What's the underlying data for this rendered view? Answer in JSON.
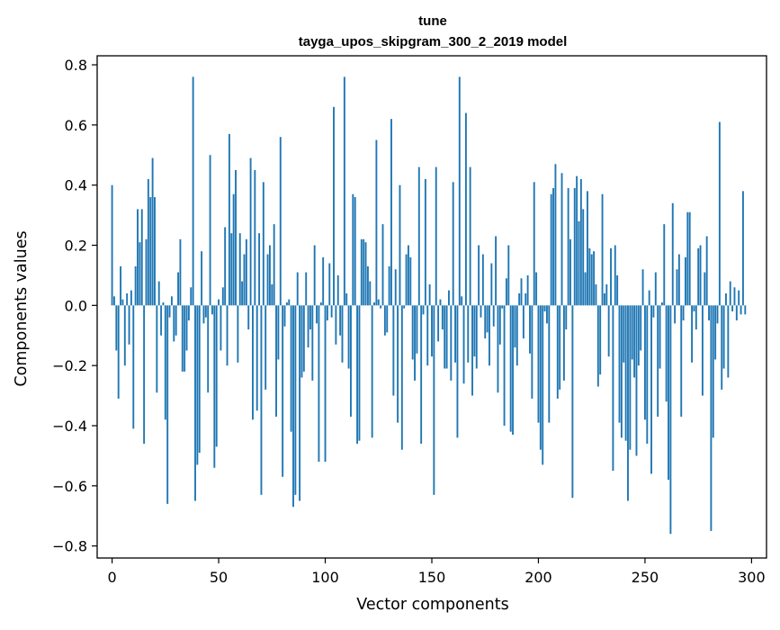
{
  "colors": {
    "bar": "#1f77b4",
    "axis": "#000000",
    "background": "#ffffff"
  },
  "chart_data": {
    "type": "bar",
    "title": "tune",
    "subtitle": "tayga_upos_skipgram_300_2_2019 model",
    "xlabel": "Vector components",
    "ylabel": "Components values",
    "xlim": [
      -7,
      307
    ],
    "ylim": [
      -0.84,
      0.83
    ],
    "xticks": [
      0,
      50,
      100,
      150,
      200,
      250,
      300
    ],
    "xtick_labels": [
      "0",
      "50",
      "100",
      "150",
      "200",
      "250",
      "300"
    ],
    "yticks": [
      -0.8,
      -0.6,
      -0.4,
      -0.2,
      0.0,
      0.2,
      0.4,
      0.6,
      0.8
    ],
    "ytick_labels": [
      "−0.8",
      "−0.6",
      "−0.4",
      "−0.2",
      "0.0",
      "0.2",
      "0.4",
      "0.6",
      "0.8"
    ],
    "grid": false,
    "categories": "component index 0..299",
    "values": [
      0.4,
      0.03,
      -0.15,
      -0.31,
      0.13,
      0.02,
      -0.2,
      0.04,
      -0.13,
      0.05,
      -0.41,
      0.13,
      0.32,
      0.21,
      0.32,
      -0.46,
      0.22,
      0.42,
      0.36,
      0.49,
      0.36,
      -0.29,
      0.08,
      -0.1,
      0.01,
      -0.38,
      -0.66,
      -0.04,
      0.03,
      -0.12,
      -0.1,
      0.11,
      0.22,
      -0.22,
      -0.22,
      -0.15,
      -0.05,
      0.06,
      0.76,
      -0.65,
      -0.53,
      -0.49,
      0.18,
      -0.06,
      -0.04,
      -0.29,
      0.5,
      -0.03,
      -0.54,
      -0.47,
      0.02,
      -0.15,
      0.06,
      0.26,
      -0.2,
      0.57,
      0.24,
      0.37,
      0.45,
      -0.19,
      0.24,
      0.08,
      0.17,
      0.22,
      -0.08,
      0.49,
      -0.38,
      0.45,
      -0.35,
      0.24,
      -0.63,
      0.41,
      -0.28,
      0.17,
      0.2,
      0.07,
      0.27,
      -0.37,
      -0.18,
      0.56,
      -0.57,
      -0.07,
      0.01,
      0.02,
      -0.42,
      -0.67,
      -0.63,
      0.11,
      -0.65,
      -0.24,
      -0.22,
      0.11,
      -0.14,
      -0.08,
      -0.25,
      0.2,
      -0.06,
      -0.52,
      0.01,
      0.16,
      -0.52,
      -0.05,
      0.14,
      -0.04,
      0.66,
      -0.13,
      0.1,
      -0.1,
      -0.19,
      0.76,
      0.04,
      -0.21,
      -0.37,
      0.37,
      0.36,
      -0.46,
      -0.45,
      0.22,
      0.22,
      0.21,
      0.13,
      0.08,
      -0.44,
      0.01,
      0.55,
      0.02,
      -0.01,
      0.27,
      -0.1,
      -0.09,
      0.13,
      0.62,
      -0.3,
      0.12,
      -0.39,
      0.4,
      -0.48,
      -0.01,
      0.17,
      0.2,
      0.16,
      -0.18,
      -0.25,
      -0.16,
      0.46,
      -0.46,
      -0.03,
      0.42,
      -0.2,
      0.07,
      -0.17,
      -0.63,
      0.46,
      -0.12,
      0.02,
      -0.08,
      -0.21,
      -0.21,
      0.05,
      -0.25,
      0.41,
      -0.19,
      -0.44,
      0.76,
      0.03,
      -0.26,
      0.64,
      -0.19,
      0.46,
      -0.3,
      -0.17,
      -0.21,
      0.2,
      -0.04,
      0.17,
      -0.11,
      -0.09,
      -0.2,
      0.14,
      -0.07,
      0.23,
      -0.29,
      -0.13,
      -0.01,
      -0.4,
      0.09,
      0.2,
      -0.42,
      -0.43,
      -0.14,
      -0.2,
      0.04,
      0.09,
      -0.11,
      0.04,
      0.1,
      -0.16,
      -0.31,
      0.41,
      0.11,
      -0.39,
      -0.48,
      -0.53,
      -0.02,
      -0.06,
      -0.39,
      0.37,
      0.39,
      0.47,
      -0.31,
      -0.28,
      0.44,
      -0.25,
      -0.08,
      0.39,
      0.22,
      -0.64,
      0.39,
      0.43,
      0.28,
      0.42,
      0.32,
      0.11,
      0.38,
      0.19,
      0.17,
      0.18,
      0.07,
      -0.27,
      -0.23,
      0.37,
      0.04,
      0.07,
      -0.17,
      0.19,
      -0.55,
      0.2,
      0.1,
      -0.39,
      -0.44,
      -0.19,
      -0.45,
      -0.65,
      -0.48,
      -0.18,
      -0.24,
      -0.5,
      -0.2,
      -0.15,
      0.12,
      -0.38,
      -0.46,
      0.05,
      -0.56,
      -0.04,
      0.11,
      -0.37,
      -0.21,
      0.01,
      0.27,
      -0.32,
      -0.58,
      -0.76,
      0.34,
      -0.06,
      0.12,
      0.17,
      -0.37,
      -0.05,
      0.16,
      0.31,
      0.31,
      -0.19,
      -0.02,
      -0.08,
      0.19,
      0.2,
      -0.3,
      0.11,
      0.23,
      -0.05,
      -0.75,
      -0.44,
      -0.18,
      -0.06,
      0.61,
      -0.28,
      -0.21,
      0.04,
      -0.24,
      0.08,
      -0.02,
      0.06,
      -0.05,
      0.05,
      -0.03,
      0.38,
      -0.03
    ]
  }
}
